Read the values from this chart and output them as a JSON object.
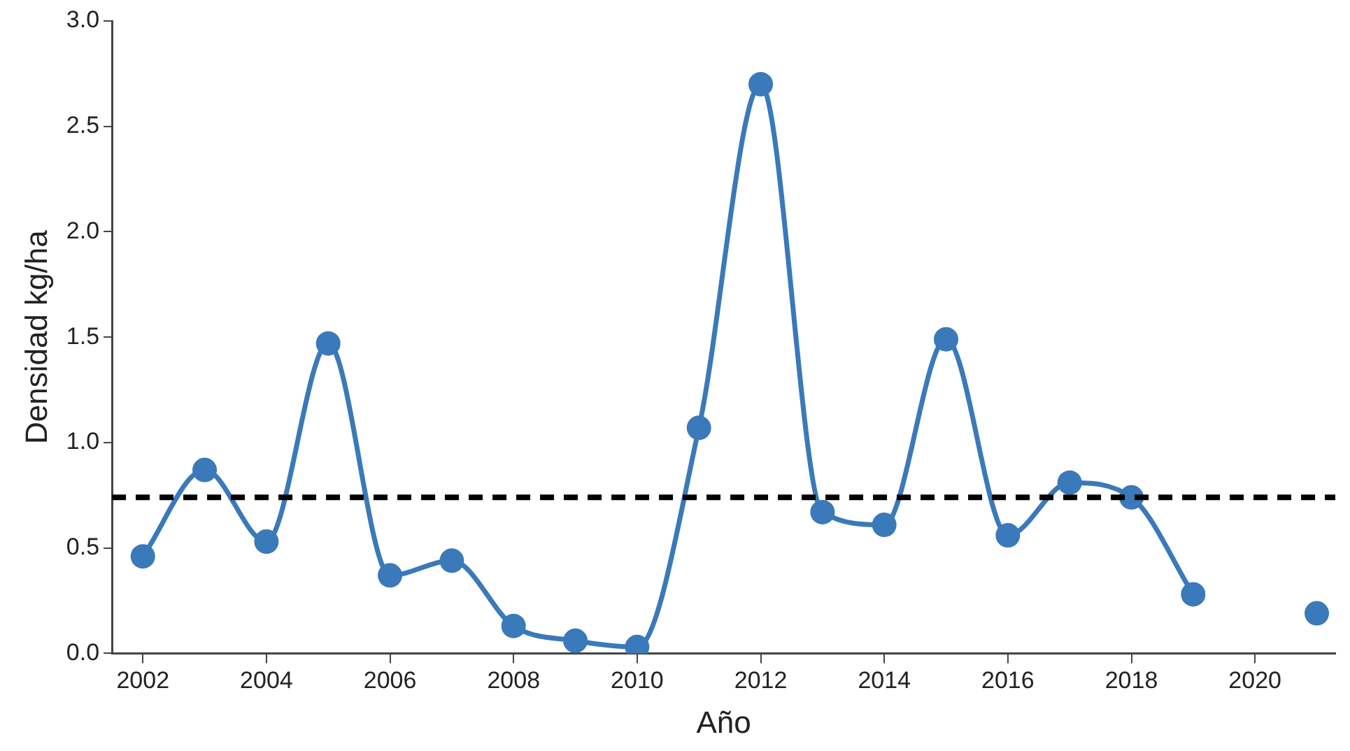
{
  "chart_data": {
    "type": "line",
    "xlabel": "Año",
    "ylabel": "Densidad kg/ha",
    "x": [
      2002,
      2003,
      2004,
      2005,
      2006,
      2007,
      2008,
      2009,
      2010,
      2011,
      2012,
      2013,
      2014,
      2015,
      2016,
      2017,
      2018,
      2019,
      2020,
      2021
    ],
    "series": [
      {
        "color": "#3a79ba",
        "values": [
          0.46,
          0.87,
          0.53,
          1.47,
          0.37,
          0.44,
          0.13,
          0.06,
          0.03,
          1.07,
          2.7,
          0.67,
          0.61,
          1.49,
          0.56,
          0.81,
          0.74,
          0.28,
          null,
          0.19
        ]
      }
    ],
    "xlim": [
      2001.5,
      2021.3
    ],
    "xticks": [
      2002,
      2004,
      2006,
      2008,
      2010,
      2012,
      2014,
      2016,
      2018,
      2020
    ],
    "ylim": [
      0,
      3
    ],
    "yticks": [
      {
        "value": 0,
        "label": "0.0"
      },
      0.5,
      {
        "value": 1,
        "label": "1.0"
      },
      1.5,
      {
        "value": 2,
        "label": "2.0"
      },
      2.5,
      {
        "value": 3,
        "label": "3.0"
      }
    ],
    "ref_lines": [
      {
        "axis": "y",
        "value": 0.74,
        "color": "#000000",
        "line_style": "dashed"
      }
    ],
    "grid": false,
    "legend": false,
    "marker": "circle",
    "line_style": "solid"
  }
}
